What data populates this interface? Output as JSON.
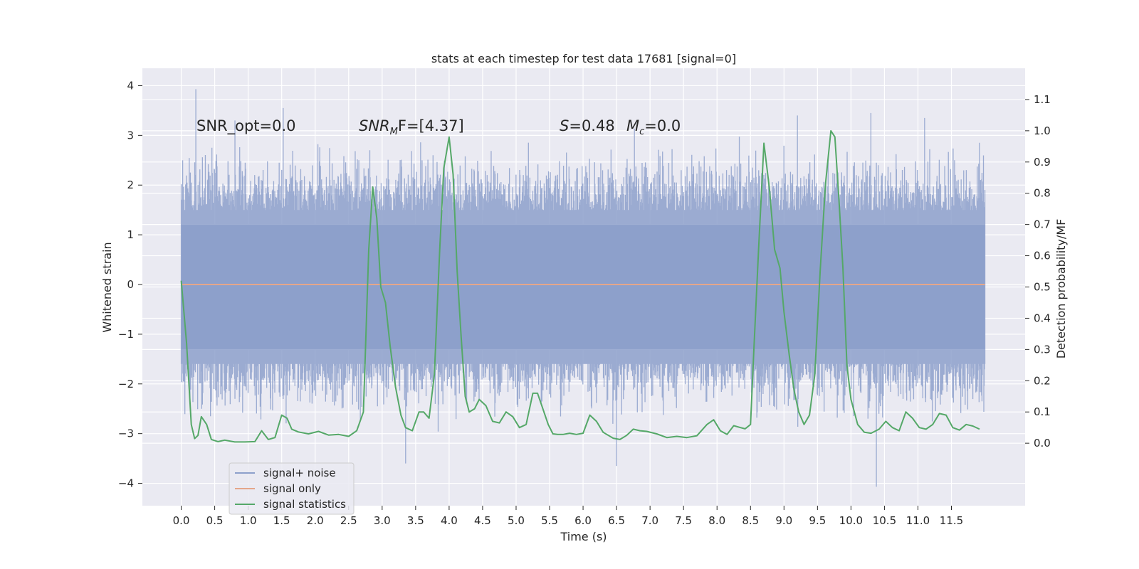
{
  "chart_data": {
    "type": "line",
    "title": "stats at each timestep for test data 17681 [signal=0]",
    "xlabel": "Time (s)",
    "ylabel": "Whitened strain",
    "ylabel_right": "Detection probability/MF",
    "xlim": [
      -0.58,
      12.6
    ],
    "ylim": [
      -4.45,
      4.35
    ],
    "ylim_right": [
      -0.2,
      1.2
    ],
    "x_ticks": [
      0.0,
      0.5,
      1.0,
      1.5,
      2.0,
      2.5,
      3.0,
      3.5,
      4.0,
      4.5,
      5.0,
      5.5,
      6.0,
      6.5,
      7.0,
      7.5,
      8.0,
      8.5,
      9.0,
      9.5,
      10.0,
      10.5,
      11.0,
      11.5
    ],
    "x_tick_labels": [
      "0.0",
      "0.5",
      "1.0",
      "1.5",
      "2.0",
      "2.5",
      "3.0",
      "3.5",
      "4.0",
      "4.5",
      "5.0",
      "5.5",
      "6.0",
      "6.5",
      "7.0",
      "7.5",
      "8.0",
      "8.5",
      "9.0",
      "9.5",
      "10.0",
      "10.5",
      "11.0",
      "11.5"
    ],
    "y_ticks": [
      -4,
      -3,
      -2,
      -1,
      0,
      1,
      2,
      3,
      4
    ],
    "y_tick_labels": [
      "−4",
      "−3",
      "−2",
      "−1",
      "0",
      "1",
      "2",
      "3",
      "4"
    ],
    "y_right_ticks": [
      0.0,
      0.1,
      0.2,
      0.3,
      0.4,
      0.5,
      0.6,
      0.7,
      0.8,
      0.9,
      1.0,
      1.1
    ],
    "y_right_tick_labels": [
      "0.0",
      "0.1",
      "0.2",
      "0.3",
      "0.4",
      "0.5",
      "0.6",
      "0.7",
      "0.8",
      "0.9",
      "1.0",
      "1.1"
    ],
    "grid": true,
    "legend_position": "bottom-left",
    "annotations": {
      "snr_opt": "SNR_opt=0.0",
      "snr_mf_main": "SNR",
      "snr_mf_sub": "M",
      "snr_mf_rest": "F=[4.37]",
      "s_main": "S",
      "s_rest": "=0.48",
      "mc_main": "M",
      "mc_sub": "c",
      "mc_rest": "=0.0"
    },
    "series": [
      {
        "name": "signal+ noise",
        "color": "#8da0cb",
        "time_range": [
          0.0,
          12.0
        ],
        "core_band": [
          -1.3,
          1.2
        ],
        "typical_envelope": [
          -2.3,
          2.4
        ],
        "peaks": [
          {
            "t": 0.22,
            "v": 3.93
          },
          {
            "t": 0.8,
            "v": 3.3
          },
          {
            "t": 1.52,
            "v": 3.55
          },
          {
            "t": 3.35,
            "v": -3.6
          },
          {
            "t": 6.5,
            "v": -3.65
          },
          {
            "t": 10.38,
            "v": -4.07
          },
          {
            "t": 10.3,
            "v": 3.45
          },
          {
            "t": 11.1,
            "v": 3.35
          },
          {
            "t": 9.2,
            "v": 3.4
          }
        ]
      },
      {
        "name": "signal only",
        "color": "#e5a68a",
        "x": [
          0.0,
          12.0
        ],
        "y": [
          0.0,
          0.0
        ]
      },
      {
        "name": "signal statistics",
        "color": "#55a868",
        "axis": "right",
        "x": [
          0.0,
          0.08,
          0.15,
          0.2,
          0.25,
          0.3,
          0.38,
          0.45,
          0.55,
          0.65,
          0.8,
          0.95,
          1.1,
          1.2,
          1.3,
          1.4,
          1.5,
          1.58,
          1.65,
          1.75,
          1.9,
          2.05,
          2.2,
          2.35,
          2.5,
          2.62,
          2.72,
          2.8,
          2.86,
          2.92,
          2.98,
          3.05,
          3.12,
          3.2,
          3.28,
          3.35,
          3.45,
          3.55,
          3.62,
          3.7,
          3.78,
          3.86,
          3.92,
          4.0,
          4.06,
          4.12,
          4.18,
          4.24,
          4.3,
          4.38,
          4.45,
          4.55,
          4.65,
          4.75,
          4.85,
          4.95,
          5.05,
          5.15,
          5.25,
          5.32,
          5.4,
          5.48,
          5.55,
          5.62,
          5.7,
          5.8,
          5.9,
          6.0,
          6.1,
          6.2,
          6.3,
          6.45,
          6.55,
          6.65,
          6.75,
          6.85,
          6.95,
          7.1,
          7.25,
          7.4,
          7.55,
          7.7,
          7.85,
          7.95,
          8.05,
          8.15,
          8.25,
          8.35,
          8.42,
          8.5,
          8.55,
          8.62,
          8.7,
          8.78,
          8.86,
          8.94,
          9.0,
          9.08,
          9.15,
          9.22,
          9.3,
          9.38,
          9.46,
          9.54,
          9.62,
          9.7,
          9.76,
          9.82,
          9.88,
          9.94,
          10.0,
          10.1,
          10.2,
          10.3,
          10.42,
          10.52,
          10.62,
          10.72,
          10.82,
          10.92,
          11.02,
          11.12,
          11.22,
          11.32,
          11.42,
          11.52,
          11.62,
          11.72,
          11.82,
          11.92
        ],
        "y": [
          0.52,
          0.32,
          0.06,
          0.015,
          0.025,
          0.085,
          0.06,
          0.012,
          0.005,
          0.01,
          0.004,
          0.004,
          0.005,
          0.04,
          0.012,
          0.018,
          0.09,
          0.08,
          0.045,
          0.036,
          0.03,
          0.038,
          0.026,
          0.028,
          0.022,
          0.04,
          0.1,
          0.62,
          0.82,
          0.72,
          0.5,
          0.45,
          0.31,
          0.18,
          0.09,
          0.05,
          0.04,
          0.1,
          0.1,
          0.08,
          0.22,
          0.62,
          0.88,
          0.98,
          0.86,
          0.55,
          0.34,
          0.15,
          0.1,
          0.11,
          0.14,
          0.12,
          0.07,
          0.065,
          0.1,
          0.085,
          0.05,
          0.06,
          0.16,
          0.16,
          0.11,
          0.06,
          0.03,
          0.028,
          0.028,
          0.032,
          0.028,
          0.032,
          0.09,
          0.07,
          0.035,
          0.016,
          0.012,
          0.025,
          0.045,
          0.04,
          0.038,
          0.03,
          0.018,
          0.022,
          0.018,
          0.024,
          0.06,
          0.075,
          0.04,
          0.028,
          0.056,
          0.05,
          0.046,
          0.06,
          0.3,
          0.62,
          0.96,
          0.82,
          0.62,
          0.56,
          0.42,
          0.28,
          0.17,
          0.1,
          0.06,
          0.09,
          0.22,
          0.55,
          0.83,
          1.0,
          0.98,
          0.78,
          0.56,
          0.25,
          0.14,
          0.06,
          0.035,
          0.032,
          0.045,
          0.07,
          0.05,
          0.04,
          0.1,
          0.08,
          0.05,
          0.045,
          0.06,
          0.095,
          0.09,
          0.05,
          0.042,
          0.06,
          0.055,
          0.045
        ]
      }
    ]
  }
}
